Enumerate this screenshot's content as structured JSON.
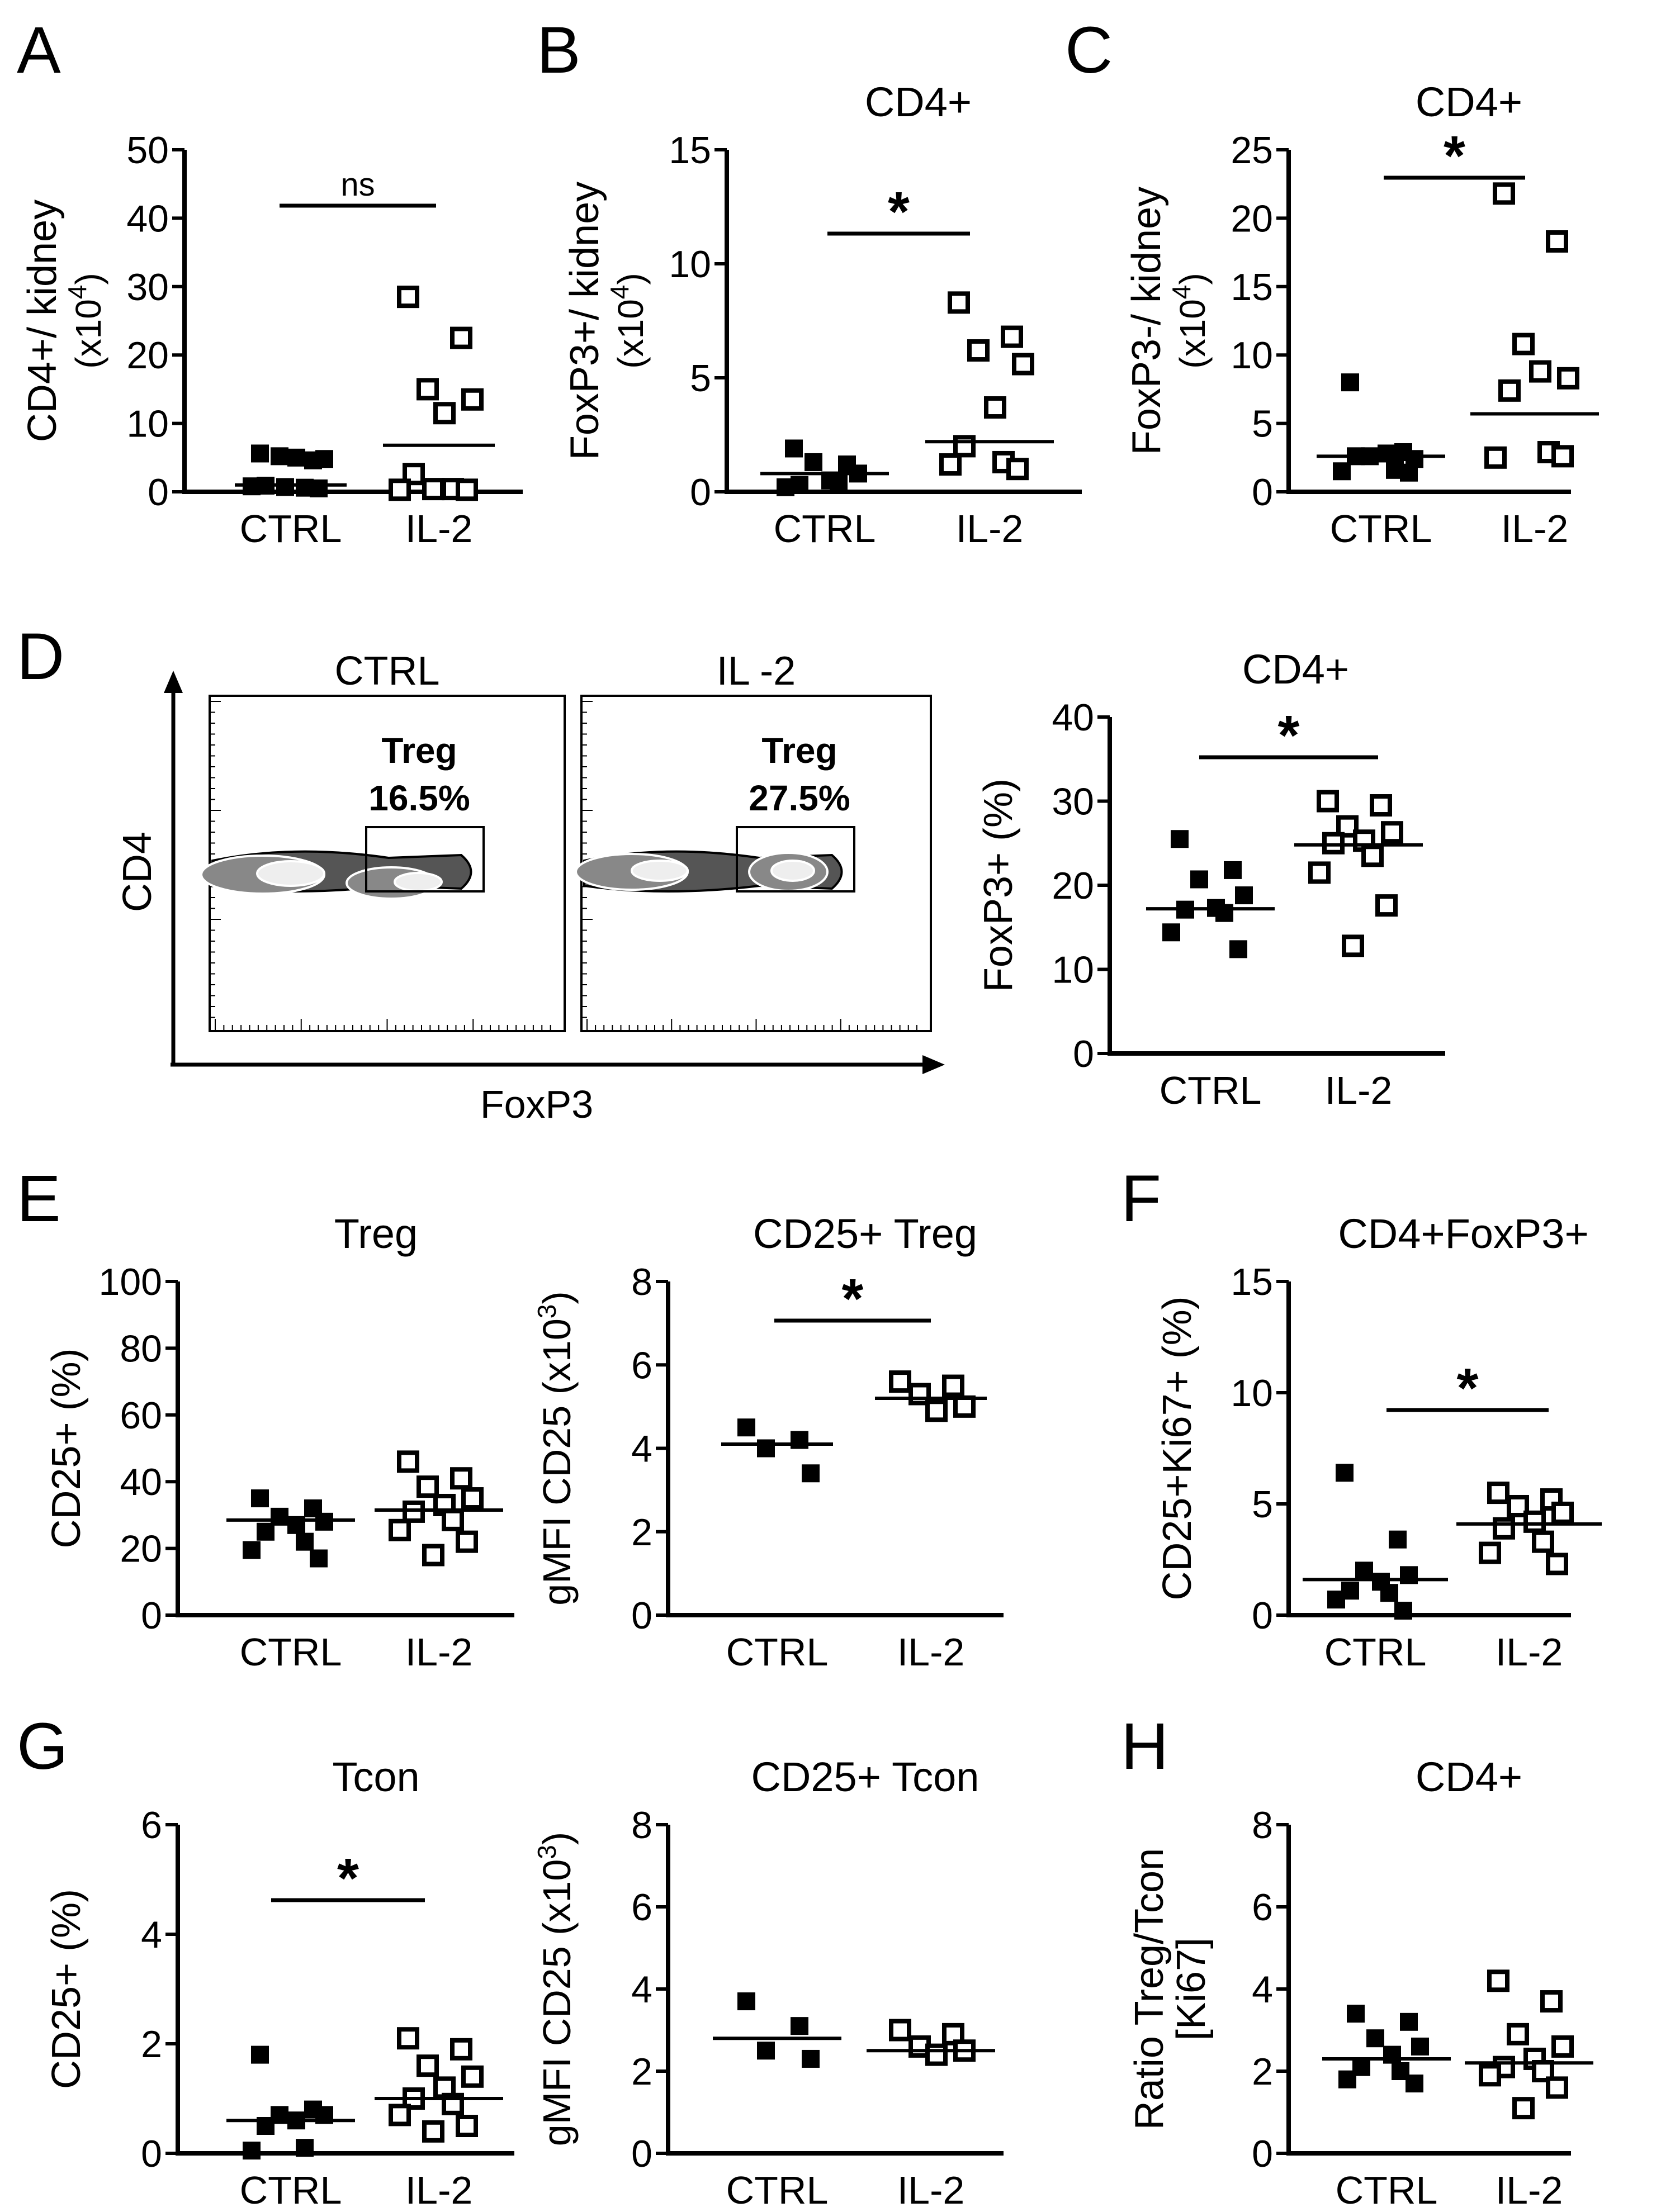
{
  "figure": {
    "panel_letters": [
      "A",
      "B",
      "C",
      "D",
      "E",
      "F",
      "G",
      "H"
    ],
    "flow": {
      "x_axis_label": "FoxP3",
      "y_axis_label": "CD4",
      "plots": [
        {
          "title": "CTRL",
          "gate_label": "Treg",
          "gate_value": "16.5%"
        },
        {
          "title": "IL -2",
          "gate_label": "Treg",
          "gate_value": "27.5%"
        }
      ]
    }
  },
  "chart_data": [
    {
      "id": "A",
      "type": "scatter",
      "title": "",
      "ylabel": "CD4+/ kidney",
      "yunit_base": "(x10",
      "yunit_exp": "4",
      "yunit_close": ")",
      "ylim": [
        0,
        50
      ],
      "yticks": [
        "0",
        "10",
        "20",
        "30",
        "40",
        "50"
      ],
      "categories": [
        "CTRL",
        "IL-2"
      ],
      "series": [
        {
          "name": "CTRL",
          "marker": "filled-square",
          "values": [
            5.6,
            4.6,
            5.2,
            4.8,
            5.0,
            0.9,
            0.6,
            0.8,
            0.5,
            0.7
          ],
          "mean": 1.0
        },
        {
          "name": "IL-2",
          "marker": "open-square",
          "values": [
            28.5,
            22.5,
            15.0,
            13.5,
            11.5,
            2.6,
            0.4,
            0.3,
            0.3,
            0.4
          ],
          "mean": 6.8
        }
      ],
      "significance": "ns"
    },
    {
      "id": "B",
      "type": "scatter",
      "title": "CD4+",
      "ylabel": "FoxP3+/ kidney",
      "yunit_base": "(x10",
      "yunit_exp": "4",
      "yunit_close": ")",
      "ylim": [
        0,
        15
      ],
      "yticks": [
        "0",
        "5",
        "10",
        "15"
      ],
      "categories": [
        "CTRL",
        "IL-2"
      ],
      "series": [
        {
          "name": "CTRL",
          "marker": "filled-square",
          "values": [
            1.9,
            1.2,
            1.3,
            0.8,
            0.5,
            0.3,
            0.4,
            0.2
          ],
          "mean": 0.8
        },
        {
          "name": "IL-2",
          "marker": "open-square",
          "values": [
            8.3,
            6.8,
            6.2,
            5.6,
            3.7,
            2.0,
            1.3,
            1.2,
            1.0
          ],
          "mean": 2.2
        }
      ],
      "significance": "*"
    },
    {
      "id": "C",
      "type": "scatter",
      "title": "CD4+",
      "ylabel": "FoxP3-/ kidney",
      "yunit_base": "(x10",
      "yunit_exp": "4",
      "yunit_close": ")",
      "ylim": [
        0,
        25
      ],
      "yticks": [
        "0",
        "5",
        "10",
        "15",
        "20",
        "25"
      ],
      "categories": [
        "CTRL",
        "IL-2"
      ],
      "series": [
        {
          "name": "CTRL",
          "marker": "filled-square",
          "values": [
            8.0,
            2.9,
            2.6,
            2.4,
            2.8,
            2.6,
            1.6,
            1.5,
            1.4
          ],
          "mean": 2.6
        },
        {
          "name": "IL-2",
          "marker": "open-square",
          "values": [
            21.8,
            18.3,
            10.8,
            8.3,
            8.8,
            7.4,
            2.9,
            2.5,
            2.6
          ],
          "mean": 5.7
        }
      ],
      "significance": "*"
    },
    {
      "id": "D",
      "type": "scatter",
      "title": "CD4+",
      "ylabel": "FoxP3+ (%)",
      "yunit_base": "",
      "yunit_exp": "",
      "yunit_close": "",
      "ylim": [
        0,
        40
      ],
      "yticks": [
        "0",
        "10",
        "20",
        "30",
        "40"
      ],
      "categories": [
        "CTRL",
        "IL-2"
      ],
      "series": [
        {
          "name": "CTRL",
          "marker": "filled-square",
          "values": [
            25.5,
            21.8,
            20.7,
            18.8,
            17.3,
            17.1,
            16.7,
            14.4,
            12.4
          ],
          "mean": 17.2
        },
        {
          "name": "IL-2",
          "marker": "open-square",
          "values": [
            30.0,
            29.5,
            27.0,
            26.3,
            25.3,
            25.0,
            23.5,
            21.5,
            17.6,
            12.8
          ],
          "mean": 24.8
        }
      ],
      "significance": "*"
    },
    {
      "id": "E1",
      "type": "scatter",
      "title": "Treg",
      "ylabel": "CD25+ (%)",
      "yunit_base": "",
      "yunit_exp": "",
      "yunit_close": "",
      "ylim": [
        0,
        100
      ],
      "yticks": [
        "0",
        "20",
        "40",
        "60",
        "80",
        "100"
      ],
      "categories": [
        "CTRL",
        "IL-2"
      ],
      "series": [
        {
          "name": "CTRL",
          "marker": "filled-square",
          "values": [
            35.0,
            32.0,
            29.5,
            28.0,
            27.0,
            25.0,
            22.0,
            19.5,
            17.0
          ],
          "mean": 28.5
        },
        {
          "name": "IL-2",
          "marker": "open-square",
          "values": [
            46.0,
            41.0,
            38.5,
            35.0,
            33.0,
            31.0,
            28.5,
            25.5,
            22.0,
            18.0
          ],
          "mean": 31.5
        }
      ],
      "significance": ""
    },
    {
      "id": "E2",
      "type": "scatter",
      "title": "CD25+ Treg",
      "ylabel": "gMFI CD25",
      "yunit_base": "(x10",
      "yunit_exp": "3",
      "yunit_close": ")",
      "ylim": [
        0,
        8
      ],
      "yticks": [
        "0",
        "2",
        "4",
        "6",
        "8"
      ],
      "categories": [
        "CTRL",
        "IL-2"
      ],
      "series": [
        {
          "name": "CTRL",
          "marker": "filled-square",
          "values": [
            4.5,
            4.2,
            4.0,
            3.4
          ],
          "mean": 4.1
        },
        {
          "name": "IL-2",
          "marker": "open-square",
          "values": [
            5.6,
            5.5,
            5.3,
            5.0,
            4.9
          ],
          "mean": 5.2
        }
      ],
      "significance": "*"
    },
    {
      "id": "F",
      "type": "scatter",
      "title": "CD4+FoxP3+",
      "ylabel": "CD25+Ki67+ (%)",
      "yunit_base": "",
      "yunit_exp": "",
      "yunit_close": "",
      "ylim": [
        0,
        15
      ],
      "yticks": [
        "0",
        "5",
        "10",
        "15"
      ],
      "categories": [
        "CTRL",
        "IL-2"
      ],
      "series": [
        {
          "name": "CTRL",
          "marker": "filled-square",
          "values": [
            6.4,
            3.4,
            2.0,
            1.8,
            1.5,
            1.1,
            1.0,
            0.7,
            0.2
          ],
          "mean": 1.6
        },
        {
          "name": "IL-2",
          "marker": "open-square",
          "values": [
            5.5,
            5.2,
            4.9,
            4.6,
            4.2,
            3.9,
            3.3,
            2.8,
            2.3
          ],
          "mean": 4.1
        }
      ],
      "significance": "*"
    },
    {
      "id": "G1",
      "type": "scatter",
      "title": "Tcon",
      "ylabel": "CD25+ (%)",
      "yunit_base": "",
      "yunit_exp": "",
      "yunit_close": "",
      "ylim": [
        0,
        6
      ],
      "yticks": [
        "0",
        "2",
        "4",
        "6"
      ],
      "categories": [
        "CTRL",
        "IL-2"
      ],
      "series": [
        {
          "name": "CTRL",
          "marker": "filled-square",
          "values": [
            1.8,
            0.8,
            0.7,
            0.7,
            0.6,
            0.5,
            0.1,
            0.05
          ],
          "mean": 0.6
        },
        {
          "name": "IL-2",
          "marker": "open-square",
          "values": [
            2.1,
            1.9,
            1.6,
            1.4,
            1.2,
            1.0,
            0.9,
            0.7,
            0.5,
            0.4
          ],
          "mean": 1.0
        }
      ],
      "significance": "*"
    },
    {
      "id": "G2",
      "type": "scatter",
      "title": "CD25+ Tcon",
      "ylabel": "gMFI CD25",
      "yunit_base": "(x10",
      "yunit_exp": "3",
      "yunit_close": ")",
      "ylim": [
        0,
        8
      ],
      "yticks": [
        "0",
        "2",
        "4",
        "6",
        "8"
      ],
      "categories": [
        "CTRL",
        "IL-2"
      ],
      "series": [
        {
          "name": "CTRL",
          "marker": "filled-square",
          "values": [
            3.7,
            3.1,
            2.5,
            2.3
          ],
          "mean": 2.8
        },
        {
          "name": "IL-2",
          "marker": "open-square",
          "values": [
            3.0,
            2.9,
            2.6,
            2.5,
            2.4
          ],
          "mean": 2.5
        }
      ],
      "significance": ""
    },
    {
      "id": "H",
      "type": "scatter",
      "title": "CD4+",
      "ylabel": "Ratio Treg/Tcon",
      "ylabel2": "[Ki67]",
      "yunit_base": "",
      "yunit_exp": "",
      "yunit_close": "",
      "ylim": [
        0,
        8
      ],
      "yticks": [
        "0",
        "2",
        "4",
        "6",
        "8"
      ],
      "categories": [
        "CTRL",
        "IL-2"
      ],
      "series": [
        {
          "name": "CTRL",
          "marker": "filled-square",
          "values": [
            3.4,
            3.2,
            2.8,
            2.6,
            2.4,
            2.1,
            2.0,
            1.8,
            1.7
          ],
          "mean": 2.3
        },
        {
          "name": "IL-2",
          "marker": "open-square",
          "values": [
            4.2,
            3.7,
            2.9,
            2.6,
            2.3,
            2.1,
            2.0,
            1.9,
            1.6,
            1.1
          ],
          "mean": 2.2
        }
      ],
      "significance": ""
    }
  ]
}
